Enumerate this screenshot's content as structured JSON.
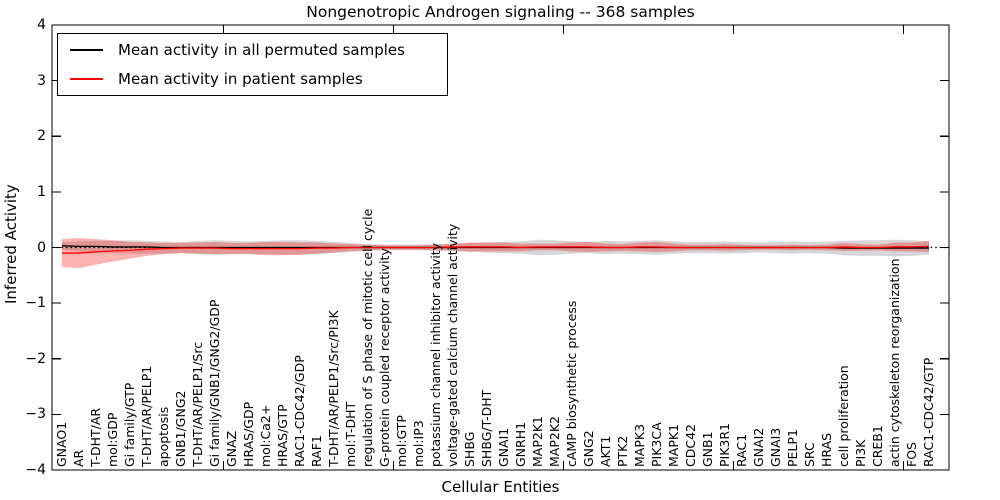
{
  "chart_data": {
    "type": "line",
    "title": "Nongenotropic Androgen signaling -- 368 samples",
    "xlabel": "Cellular Entities",
    "ylabel": "Inferred Activity",
    "ylim": [
      -4,
      4
    ],
    "yticklabels": [
      "4",
      "3",
      "2",
      "1",
      "0",
      "−1",
      "−2",
      "−3",
      "−4"
    ],
    "ytick_values": [
      4,
      3,
      2,
      1,
      0,
      -1,
      -2,
      -3,
      -4
    ],
    "xtick_value_step": 10,
    "grid": false,
    "legend_position": "upper left",
    "zero_reference_line": true,
    "categories": [
      "GNAO1",
      "AR",
      "T-DHT/AR",
      "mol:GDP",
      "Gi family/GTP",
      "T-DHT/AR/PELP1",
      "apoptosis",
      "GNB1/GNG2",
      "T-DHT/AR/PELP1/Src",
      "Gi family/GNB1/GNG2/GDP",
      "GNAZ",
      "HRAS/GDP",
      "mol:Ca2+",
      "HRAS/GTP",
      "RAC1-CDC42/GDP",
      "RAF1",
      "T-DHT/AR/PELP1/Src/PI3K",
      "mol:T-DHT",
      "regulation of S phase of mitotic cell cycle",
      "G-protein coupled receptor activity",
      "mol:GTP",
      "mol:IP3",
      "potassium channel inhibitor activity",
      "voltage-gated calcium channel activity",
      "SHBG",
      "SHBG/T-DHT",
      "GNAI1",
      "GNRH1",
      "MAP2K1",
      "MAP2K2",
      "cAMP biosynthetic process",
      "GNG2",
      "AKT1",
      "PTK2",
      "MAPK3",
      "PIK3CA",
      "MAPK1",
      "CDC42",
      "GNB1",
      "PIK3R1",
      "RAC1",
      "GNAI2",
      "GNAI3",
      "PELP1",
      "SRC",
      "HRAS",
      "cell proliferation",
      "PI3K",
      "CREB1",
      "actin cytoskeleton reorganization",
      "FOS",
      "RAC1-CDC42/GTP"
    ],
    "series": [
      {
        "name": "Mean activity in all permuted samples",
        "color": "#000000",
        "values": [
          0.03,
          0.02,
          0.02,
          0.01,
          0.01,
          0.01,
          0.0,
          0.0,
          0.0,
          0.0,
          0.0,
          0.0,
          0.0,
          0.0,
          0.0,
          0.0,
          0.0,
          0.0,
          0.0,
          0.0,
          0.0,
          0.0,
          0.0,
          0.0,
          0.0,
          0.0,
          0.0,
          0.0,
          0.0,
          0.0,
          0.0,
          0.0,
          0.0,
          0.0,
          0.0,
          0.0,
          0.0,
          0.0,
          0.0,
          0.0,
          0.0,
          0.0,
          0.0,
          0.0,
          0.0,
          0.0,
          -0.01,
          -0.01,
          -0.01,
          -0.01,
          -0.01,
          -0.01
        ],
        "band": {
          "color": "rgba(0,0,0,0.16)",
          "hi": [
            0.1,
            0.11,
            0.12,
            0.12,
            0.13,
            0.12,
            0.11,
            0.1,
            0.12,
            0.13,
            0.12,
            0.11,
            0.12,
            0.13,
            0.13,
            0.12,
            0.1,
            0.08,
            0.06,
            0.05,
            0.05,
            0.05,
            0.06,
            0.07,
            0.08,
            0.09,
            0.1,
            0.11,
            0.14,
            0.13,
            0.11,
            0.1,
            0.12,
            0.11,
            0.12,
            0.13,
            0.11,
            0.1,
            0.1,
            0.11,
            0.1,
            0.09,
            0.1,
            0.11,
            0.1,
            0.11,
            0.12,
            0.13,
            0.13,
            0.14,
            0.13,
            0.11
          ],
          "lo": [
            -0.04,
            -0.07,
            -0.08,
            -0.1,
            -0.11,
            -0.11,
            -0.11,
            -0.1,
            -0.12,
            -0.13,
            -0.12,
            -0.11,
            -0.12,
            -0.13,
            -0.13,
            -0.12,
            -0.1,
            -0.08,
            -0.06,
            -0.05,
            -0.05,
            -0.05,
            -0.06,
            -0.07,
            -0.08,
            -0.09,
            -0.1,
            -0.11,
            -0.14,
            -0.13,
            -0.11,
            -0.1,
            -0.12,
            -0.11,
            -0.12,
            -0.13,
            -0.11,
            -0.1,
            -0.1,
            -0.11,
            -0.1,
            -0.09,
            -0.1,
            -0.11,
            -0.1,
            -0.11,
            -0.14,
            -0.15,
            -0.15,
            -0.16,
            -0.15,
            -0.13
          ]
        }
      },
      {
        "name": "Mean activity in patient samples",
        "color": "#ff0000",
        "values": [
          -0.1,
          -0.1,
          -0.08,
          -0.06,
          -0.05,
          -0.03,
          -0.02,
          -0.01,
          -0.01,
          -0.01,
          -0.02,
          -0.02,
          -0.02,
          -0.02,
          -0.02,
          -0.01,
          -0.01,
          0.0,
          0.0,
          0.0,
          0.0,
          0.0,
          0.0,
          0.01,
          0.01,
          0.01,
          0.01,
          0.0,
          0.01,
          0.01,
          0.01,
          0.01,
          0.0,
          0.0,
          0.01,
          0.01,
          0.0,
          0.0,
          0.0,
          0.0,
          0.0,
          0.0,
          0.0,
          0.0,
          0.0,
          0.0,
          0.01,
          0.0,
          0.0,
          0.01,
          0.01,
          0.02
        ],
        "band": {
          "color": "rgba(255,0,0,0.30)",
          "hi": [
            0.15,
            0.17,
            0.15,
            0.13,
            0.1,
            0.09,
            0.08,
            0.08,
            0.09,
            0.1,
            0.08,
            0.08,
            0.1,
            0.1,
            0.09,
            0.09,
            0.07,
            0.06,
            0.05,
            0.04,
            0.04,
            0.04,
            0.05,
            0.07,
            0.09,
            0.09,
            0.09,
            0.07,
            0.07,
            0.07,
            0.09,
            0.1,
            0.07,
            0.06,
            0.09,
            0.1,
            0.07,
            0.05,
            0.05,
            0.06,
            0.05,
            0.04,
            0.04,
            0.05,
            0.04,
            0.05,
            0.08,
            0.06,
            0.05,
            0.09,
            0.09,
            0.12
          ],
          "lo": [
            -0.35,
            -0.37,
            -0.31,
            -0.25,
            -0.2,
            -0.15,
            -0.12,
            -0.1,
            -0.11,
            -0.12,
            -0.12,
            -0.12,
            -0.14,
            -0.14,
            -0.13,
            -0.11,
            -0.09,
            -0.06,
            -0.05,
            -0.04,
            -0.04,
            -0.04,
            -0.05,
            -0.05,
            -0.07,
            -0.07,
            -0.07,
            -0.07,
            -0.05,
            -0.05,
            -0.07,
            -0.08,
            -0.07,
            -0.06,
            -0.07,
            -0.08,
            -0.07,
            -0.05,
            -0.05,
            -0.06,
            -0.05,
            -0.04,
            -0.04,
            -0.05,
            -0.04,
            -0.05,
            -0.06,
            -0.06,
            -0.05,
            -0.07,
            -0.07,
            -0.08
          ]
        }
      }
    ]
  }
}
